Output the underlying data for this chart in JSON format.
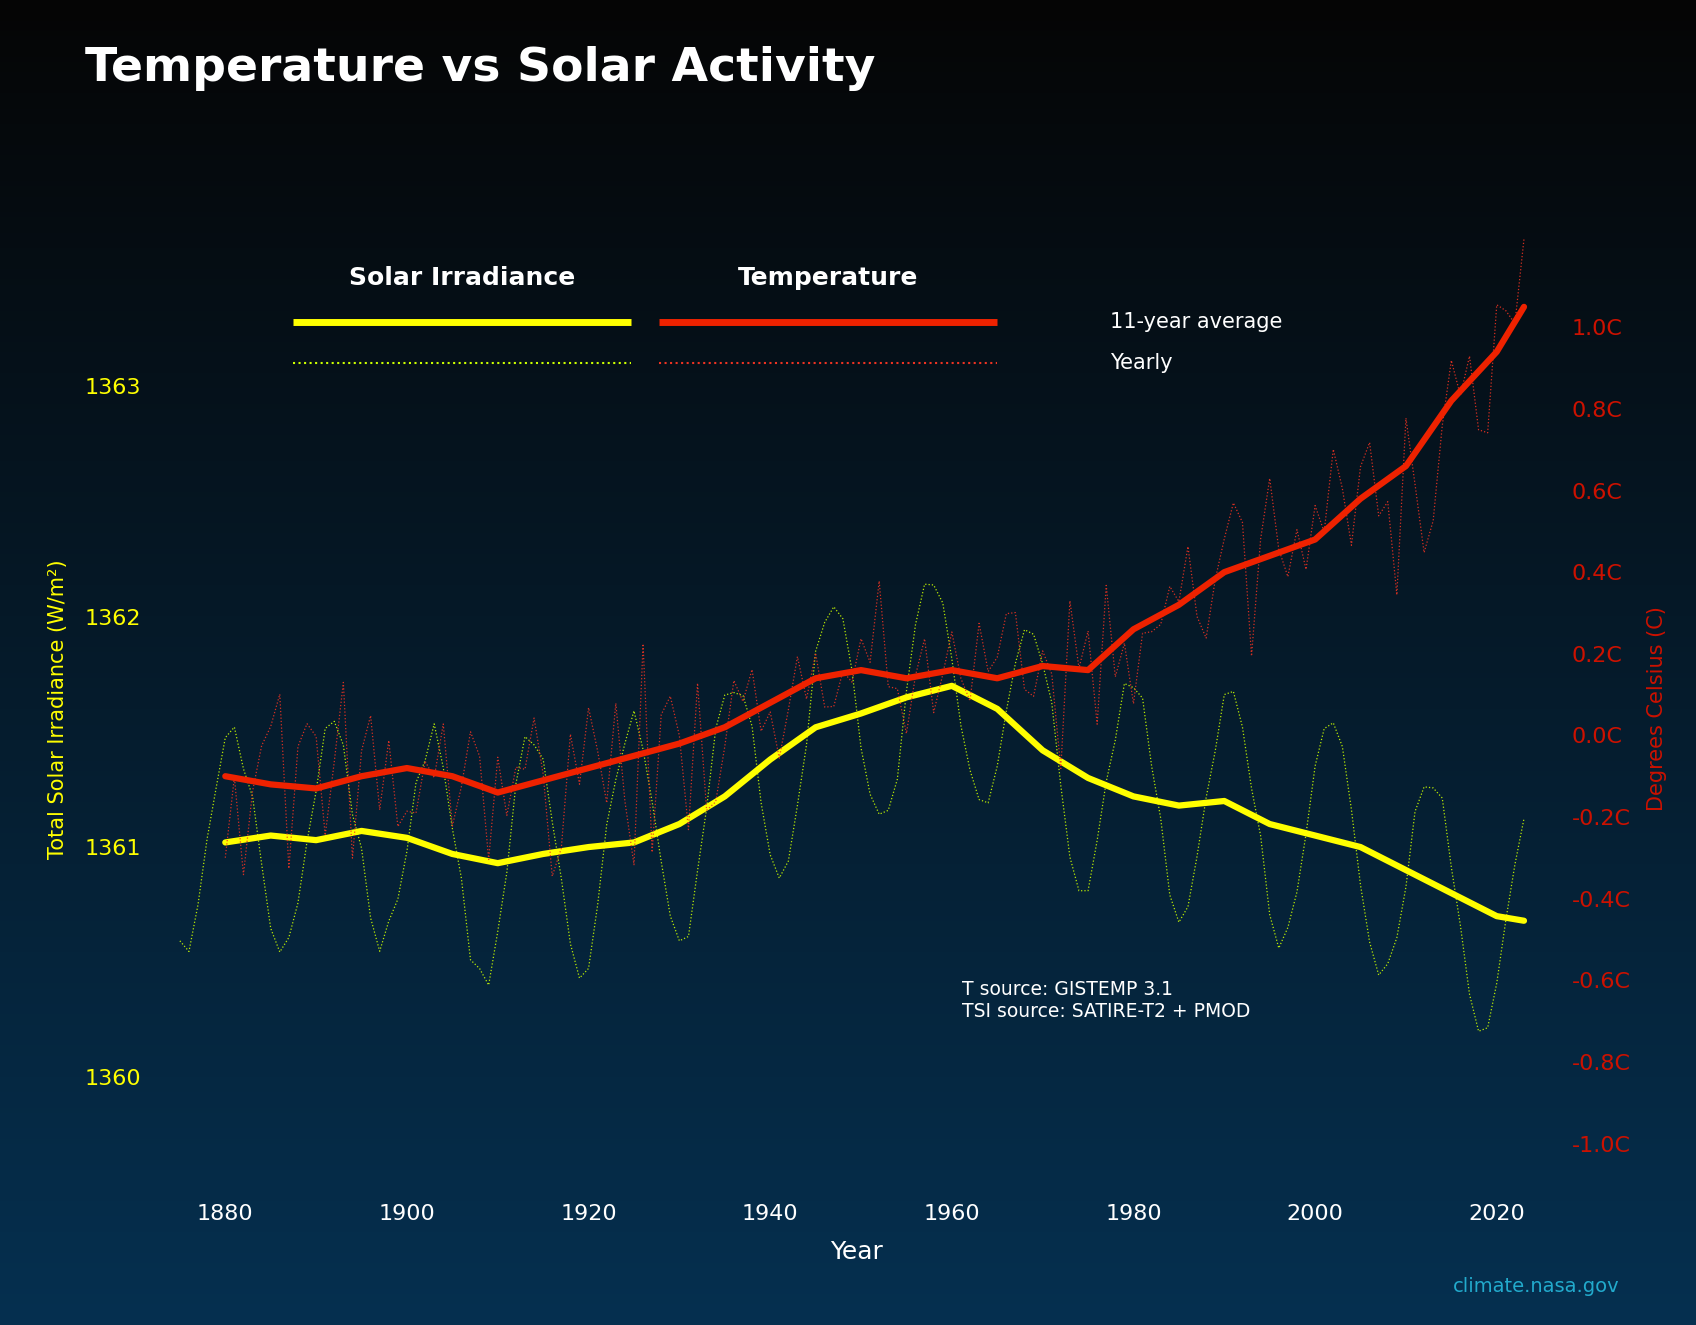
{
  "title": "Temperature vs Solar Activity",
  "xlabel": "Year",
  "ylabel_left": "Total Solar Irradiance (W/m²)",
  "ylabel_right": "Degrees Celsius (C)",
  "bg_top": "#050505",
  "bg_bottom": "#063050",
  "title_color": "#ffffff",
  "source_text": "T source: GISTEMP 3.1\nTSI source: SATIRE-T2 + PMOD",
  "watermark": "climate.nasa.gov",
  "ylim_left": [
    1359.5,
    1363.7
  ],
  "ylim_right": [
    -1.12,
    1.25
  ],
  "xlim": [
    1872,
    2027
  ],
  "left_yticks": [
    1360,
    1361,
    1362,
    1363
  ],
  "right_yticks": [
    -1.0,
    -0.8,
    -0.6,
    -0.4,
    -0.2,
    0.0,
    0.2,
    0.4,
    0.6,
    0.8,
    1.0
  ],
  "xticks": [
    1880,
    1900,
    1920,
    1940,
    1960,
    1980,
    2000,
    2020
  ],
  "tsi_avg_years": [
    1880,
    1885,
    1890,
    1895,
    1900,
    1905,
    1910,
    1915,
    1920,
    1925,
    1930,
    1935,
    1940,
    1945,
    1950,
    1955,
    1960,
    1965,
    1970,
    1975,
    1980,
    1985,
    1990,
    1995,
    2000,
    2005,
    2010,
    2015,
    2020,
    2023
  ],
  "tsi_avg_values": [
    1361.02,
    1361.05,
    1361.03,
    1361.07,
    1361.04,
    1360.97,
    1360.93,
    1360.97,
    1361.0,
    1361.02,
    1361.1,
    1361.22,
    1361.38,
    1361.52,
    1361.58,
    1361.65,
    1361.7,
    1361.6,
    1361.42,
    1361.3,
    1361.22,
    1361.18,
    1361.2,
    1361.1,
    1361.05,
    1361.0,
    1360.9,
    1360.8,
    1360.7,
    1360.68
  ],
  "temp_avg_years": [
    1880,
    1885,
    1890,
    1895,
    1900,
    1905,
    1910,
    1915,
    1920,
    1925,
    1930,
    1935,
    1940,
    1945,
    1950,
    1955,
    1960,
    1965,
    1970,
    1975,
    1980,
    1985,
    1990,
    1995,
    2000,
    2005,
    2010,
    2015,
    2020,
    2023
  ],
  "temp_avg_values": [
    -0.1,
    -0.12,
    -0.13,
    -0.1,
    -0.08,
    -0.1,
    -0.14,
    -0.11,
    -0.08,
    -0.05,
    -0.02,
    0.02,
    0.08,
    0.14,
    0.16,
    0.14,
    0.16,
    0.14,
    0.17,
    0.16,
    0.26,
    0.32,
    0.4,
    0.44,
    0.48,
    0.58,
    0.66,
    0.82,
    0.94,
    1.05
  ]
}
